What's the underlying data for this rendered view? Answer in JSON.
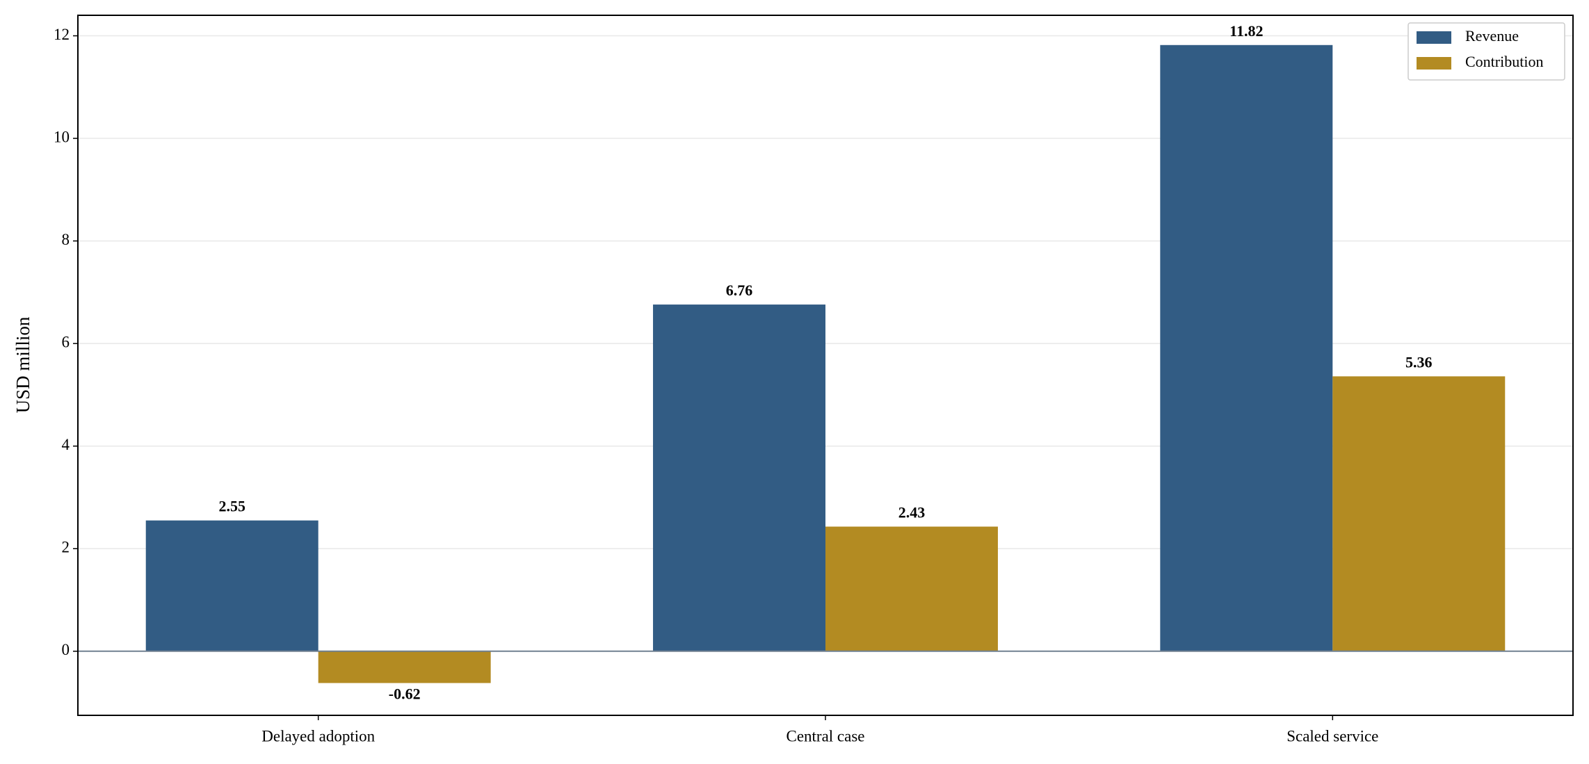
{
  "chart_data": {
    "type": "bar",
    "y_label": "USD million",
    "categories": [
      "Delayed adoption",
      "Central case",
      "Scaled service"
    ],
    "series": [
      {
        "name": "Revenue",
        "color": "#325c84",
        "values": [
          2.55,
          6.76,
          11.82
        ]
      },
      {
        "name": "Contribution",
        "color": "#b38b22",
        "values": [
          -0.62,
          2.43,
          5.36
        ]
      }
    ],
    "ylim": [
      -1.25,
      12.4
    ],
    "yticks": [
      0,
      2,
      4,
      6,
      8,
      10,
      12
    ],
    "grid": true,
    "legend": "upper right"
  }
}
